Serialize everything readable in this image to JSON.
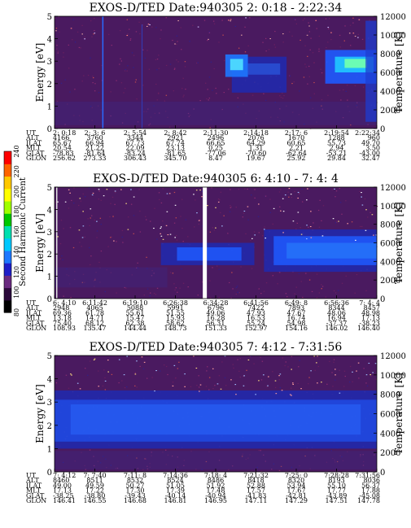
{
  "figure": {
    "colorbar": {
      "label": "Second Harmonic Current",
      "ticks": [
        "240",
        "220",
        "200",
        "180",
        "160",
        "140",
        "120",
        "100",
        "80"
      ],
      "min": 80,
      "max": 240
    }
  },
  "chart_data": [
    {
      "type": "heatmap",
      "title": "EXOS-D/TED   Date:940305  2: 0:18 - 2:22:34",
      "ylabel": "Energy [eV]",
      "ylabel_right": "Temperature [K]",
      "ylim": [
        0,
        5
      ],
      "ylim_right": [
        0,
        12000
      ],
      "yticks": [
        "0",
        "1",
        "2",
        "3",
        "4",
        "5"
      ],
      "yticks_right": [
        "0",
        "2000",
        "4000",
        "6000",
        "8000",
        "10000",
        "12000"
      ],
      "row_labels": [
        "UT",
        "ALT",
        "ILAT",
        "MLT",
        "GLAT",
        "GLON"
      ],
      "columns": [
        [
          "2: 0:18",
          "4166",
          "65.67",
          "20.54",
          "-78.83",
          "256.62"
        ],
        [
          "2: 3: 6",
          "3760",
          "66.94",
          "21.22",
          "-81.64",
          "273.33"
        ],
        [
          "2: 5:54",
          "3344",
          "67.73",
          "22.09",
          "-83.24",
          "306.43"
        ],
        [
          "2: 8:42",
          "2921",
          "67.74",
          "23.13",
          "-81.65",
          "345.70"
        ],
        [
          "2:11:30",
          "2496",
          "66.65",
          "0.25",
          "-77.06",
          "8.47"
        ],
        [
          "2:14:18",
          "2076",
          "64.29",
          "1.31",
          "-70.60",
          "19.67"
        ],
        [
          "2:17: 6",
          "1670",
          "60.65",
          "2.21",
          "-62.64",
          "25.92"
        ],
        [
          "2:19:54",
          "1288",
          "55.73",
          "2.94",
          "-53.21",
          "29.84"
        ],
        [
          "2:22:34",
          "960",
          "49.70",
          "3.50",
          "-43.00",
          "32.47"
        ]
      ]
    },
    {
      "type": "heatmap",
      "title": "EXOS-D/TED   Date:940305  6: 4:10 - 7: 4: 4",
      "ylabel": "Energy [eV]",
      "ylabel_right": "Temperature [K]",
      "ylim": [
        0,
        5
      ],
      "ylim_right": [
        0,
        12000
      ],
      "yticks": [
        "0",
        "1",
        "2",
        "3",
        "4",
        "5"
      ],
      "yticks_right": [
        "0",
        "2000",
        "4000",
        "6000",
        "8000",
        "10000",
        "12000"
      ],
      "row_labels": [
        "UT",
        "ALT",
        "ILAT",
        "MLT",
        "GLAT",
        "GLON"
      ],
      "columns": [
        [
          "6: 4:10",
          "2948",
          "69.36",
          "13.18",
          "75.40",
          "108.93"
        ],
        [
          "6:11:42",
          "4065",
          "61.78",
          "14.71",
          "68.12",
          "135.47"
        ],
        [
          "6:19:10",
          "5088",
          "55.61",
          "15.47",
          "62.38",
          "144.44"
        ],
        [
          "6:26:38",
          "5991",
          "51.55",
          "15.93",
          "58.62",
          "148.73"
        ],
        [
          "6:34:28",
          "6796",
          "49.06",
          "16.28",
          "56.31",
          "151.33"
        ],
        [
          "6:41:56",
          "7422",
          "47.93",
          "16.53",
          "55.24",
          "152.97"
        ],
        [
          "6:49: 8",
          "7893",
          "47.67",
          "16.74",
          "54.98",
          "154.16"
        ],
        [
          "6:56:36",
          "8344",
          "48.06",
          "16.94",
          "-37.37",
          "146.02"
        ],
        [
          "7: 4: 4",
          "8457",
          "48.98",
          "17.13",
          "-38.23",
          "146.40"
        ]
      ]
    },
    {
      "type": "heatmap",
      "title": "EXOS-D/TED   Date:940305  7: 4:12 - 7:31:56",
      "ylabel": "Energy [eV]",
      "ylabel_right": "Temperature [K]",
      "ylim": [
        0,
        5
      ],
      "ylim_right": [
        0,
        12000
      ],
      "yticks": [
        "0",
        "1",
        "2",
        "3",
        "4",
        "5"
      ],
      "yticks_right": [
        "0",
        "2000",
        "4000",
        "6000",
        "8000",
        "10000",
        "12000"
      ],
      "row_labels": [
        "UT",
        "ALT",
        "ILAT",
        "MLT",
        "GLAT",
        "GLON"
      ],
      "columns": [
        [
          "7: 4:12",
          "8460",
          "49.00",
          "17.13",
          "-38.25",
          "146.41"
        ],
        [
          "7: 7:40",
          "8511",
          "49.59",
          "17.22",
          "-38.80",
          "146.55"
        ],
        [
          "7:11: 8",
          "8532",
          "50.27",
          "17.30",
          "-39.43",
          "146.68"
        ],
        [
          "7:14:36",
          "8524",
          "51.05",
          "17.39",
          "-40.14",
          "146.81"
        ],
        [
          "7:18: 4",
          "8486",
          "51.92",
          "17.48",
          "-40.94",
          "146.95"
        ],
        [
          "7:21:32",
          "8418",
          "52.88",
          "17.57",
          "-41.83",
          "147.11"
        ],
        [
          "7:25: 0",
          "8320",
          "53.94",
          "17.67",
          "-42.81",
          "147.29"
        ],
        [
          "7:28:28",
          "8193",
          "55.10",
          "17.77",
          "-43.89",
          "147.51"
        ],
        [
          "7:31:56",
          "8036",
          "56.37",
          "17.88",
          "-45.08",
          "147.78"
        ]
      ]
    }
  ]
}
